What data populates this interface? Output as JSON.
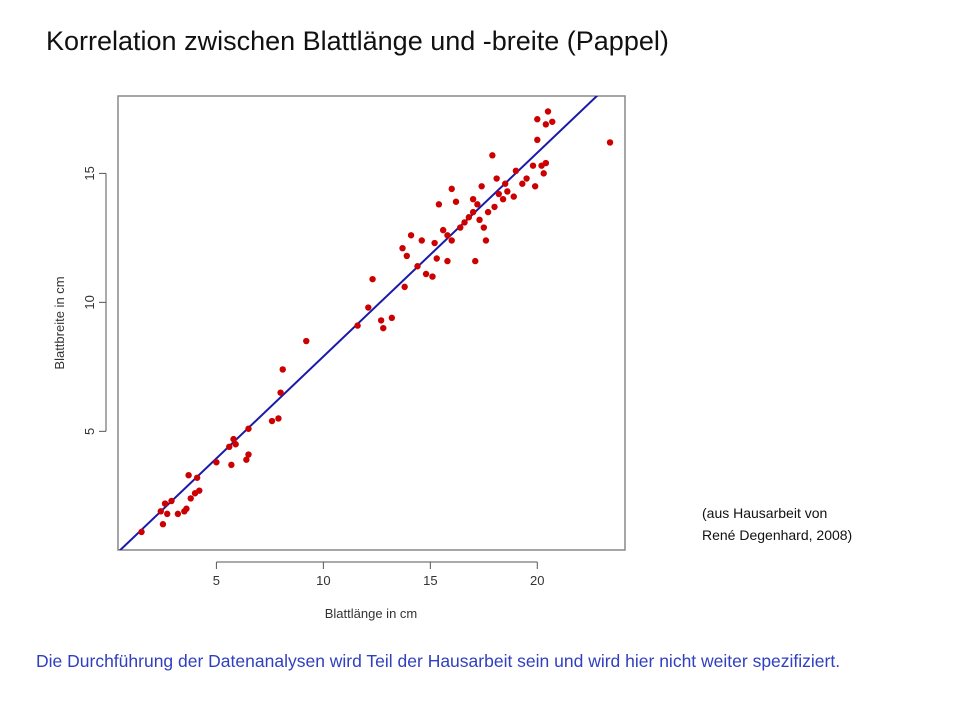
{
  "slide": {
    "title": "Korrelation zwischen Blattlänge und -breite (Pappel)",
    "source_note": [
      "(aus Hausarbeit von",
      "René Degenhard, 2008)"
    ],
    "footer": "Die Durchführung der Datenanalysen wird Teil der Hausarbeit sein und wird hier nicht weiter spezifiziert."
  },
  "chart_data": {
    "type": "scatter",
    "title": "",
    "xlabel": "Blattlänge in cm",
    "ylabel": "Blattbreite in cm",
    "xlim": [
      0.4,
      24.1
    ],
    "ylim": [
      0.4,
      18.0
    ],
    "xticks": [
      5,
      10,
      15,
      20
    ],
    "yticks": [
      5,
      10,
      15
    ],
    "grid": false,
    "legend": "none",
    "point_color": "#cc0000",
    "line_color": "#1a1aaa",
    "regression_line": {
      "slope": 0.79,
      "intercept": 0.0
    },
    "points": [
      [
        1.5,
        1.1
      ],
      [
        2.4,
        1.9
      ],
      [
        2.5,
        1.4
      ],
      [
        2.6,
        2.2
      ],
      [
        2.7,
        1.8
      ],
      [
        2.9,
        2.3
      ],
      [
        3.2,
        1.8
      ],
      [
        3.5,
        1.9
      ],
      [
        3.6,
        2.0
      ],
      [
        3.7,
        3.3
      ],
      [
        3.8,
        2.4
      ],
      [
        4.0,
        2.6
      ],
      [
        4.1,
        3.2
      ],
      [
        4.2,
        2.7
      ],
      [
        5.0,
        3.8
      ],
      [
        5.6,
        4.4
      ],
      [
        5.7,
        3.7
      ],
      [
        5.8,
        4.7
      ],
      [
        5.9,
        4.5
      ],
      [
        6.4,
        3.9
      ],
      [
        6.5,
        4.1
      ],
      [
        6.5,
        5.1
      ],
      [
        7.6,
        5.4
      ],
      [
        7.9,
        5.5
      ],
      [
        8.0,
        6.5
      ],
      [
        8.1,
        7.4
      ],
      [
        9.2,
        8.5
      ],
      [
        11.6,
        9.1
      ],
      [
        12.1,
        9.8
      ],
      [
        12.3,
        10.9
      ],
      [
        12.7,
        9.3
      ],
      [
        12.8,
        9.0
      ],
      [
        13.2,
        9.4
      ],
      [
        13.7,
        12.1
      ],
      [
        13.8,
        10.6
      ],
      [
        13.9,
        11.8
      ],
      [
        14.1,
        12.6
      ],
      [
        14.4,
        11.4
      ],
      [
        14.6,
        12.4
      ],
      [
        14.8,
        11.1
      ],
      [
        15.1,
        11.0
      ],
      [
        15.2,
        12.3
      ],
      [
        15.3,
        11.7
      ],
      [
        15.4,
        13.8
      ],
      [
        15.6,
        12.8
      ],
      [
        15.8,
        12.6
      ],
      [
        15.8,
        11.6
      ],
      [
        16.0,
        14.4
      ],
      [
        16.0,
        12.4
      ],
      [
        16.2,
        13.9
      ],
      [
        16.4,
        12.9
      ],
      [
        16.6,
        13.1
      ],
      [
        16.8,
        13.3
      ],
      [
        17.0,
        14.0
      ],
      [
        17.0,
        13.5
      ],
      [
        17.1,
        11.6
      ],
      [
        17.2,
        13.8
      ],
      [
        17.3,
        13.2
      ],
      [
        17.4,
        14.5
      ],
      [
        17.5,
        12.9
      ],
      [
        17.6,
        12.4
      ],
      [
        17.7,
        13.5
      ],
      [
        17.9,
        15.7
      ],
      [
        18.0,
        13.7
      ],
      [
        18.1,
        14.8
      ],
      [
        18.2,
        14.2
      ],
      [
        18.4,
        14.0
      ],
      [
        18.5,
        14.6
      ],
      [
        18.6,
        14.3
      ],
      [
        18.9,
        14.1
      ],
      [
        19.0,
        15.1
      ],
      [
        19.3,
        14.6
      ],
      [
        19.5,
        14.8
      ],
      [
        19.8,
        15.3
      ],
      [
        19.9,
        14.5
      ],
      [
        20.0,
        16.3
      ],
      [
        20.0,
        17.1
      ],
      [
        20.2,
        15.3
      ],
      [
        20.3,
        15.0
      ],
      [
        20.4,
        15.4
      ],
      [
        20.4,
        16.9
      ],
      [
        20.5,
        17.4
      ],
      [
        20.7,
        17.0
      ],
      [
        23.4,
        16.2
      ]
    ]
  }
}
